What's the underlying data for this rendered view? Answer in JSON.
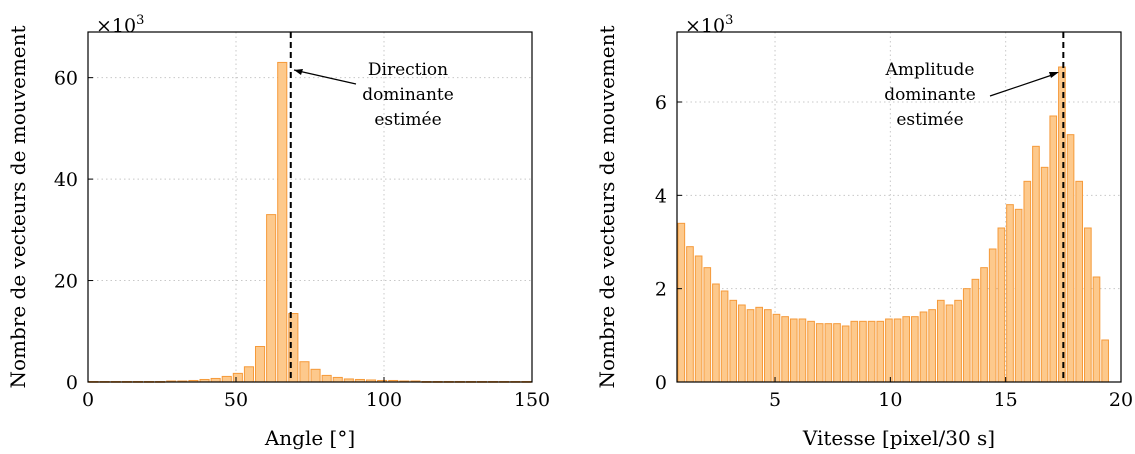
{
  "chart_data": [
    {
      "type": "bar",
      "xlabel": "Angle [°]",
      "ylabel": "Nombre de vecteurs de mouvement",
      "scale_label": "×10",
      "scale_exp": "3",
      "xlim": [
        0,
        150
      ],
      "ylim": [
        0,
        69
      ],
      "xticks": [
        "0",
        "50",
        "100",
        "150"
      ],
      "yticks": [
        "0",
        "20",
        "40",
        "60"
      ],
      "bin_width": 3.75,
      "bin_centers": [
        1.875,
        5.625,
        9.375,
        13.125,
        16.875,
        20.625,
        24.375,
        28.125,
        31.875,
        35.625,
        39.375,
        43.125,
        46.875,
        50.625,
        54.375,
        58.125,
        61.875,
        65.625,
        69.375,
        73.125,
        76.875,
        80.625,
        84.375,
        88.125,
        91.875,
        95.625,
        99.375,
        103.125,
        106.875,
        110.625,
        114.375,
        118.125,
        121.875,
        125.625,
        129.375,
        133.125,
        136.875,
        140.625,
        144.375,
        148.125
      ],
      "values": [
        0.1,
        0.1,
        0.1,
        0.1,
        0.1,
        0.1,
        0.1,
        0.2,
        0.2,
        0.3,
        0.5,
        0.7,
        1.1,
        1.7,
        3.0,
        7.0,
        33.0,
        63.0,
        13.5,
        4.0,
        2.5,
        1.3,
        0.9,
        0.6,
        0.5,
        0.4,
        0.3,
        0.3,
        0.2,
        0.2,
        0.1,
        0.1,
        0.1,
        0.1,
        0.1,
        0.1,
        0.1,
        0.1,
        0.1,
        0.1
      ],
      "marker_x": 68.5,
      "annotation_lines": [
        "Direction",
        "dominante",
        "estimée"
      ],
      "grid": true
    },
    {
      "type": "bar",
      "xlabel": "Vitesse [pixel/30 s]",
      "ylabel": "Nombre de vecteurs de mouvement",
      "scale_label": "×10",
      "scale_exp": "3",
      "xlim": [
        0.75,
        20
      ],
      "ylim": [
        0,
        7.5
      ],
      "xticks": [
        "5",
        "10",
        "15",
        "20"
      ],
      "yticks": [
        "0",
        "2",
        "4",
        "6"
      ],
      "bin_width": 0.375,
      "bin_start": 0.75,
      "values": [
        3.4,
        2.9,
        2.7,
        2.45,
        2.1,
        1.95,
        1.75,
        1.65,
        1.55,
        1.6,
        1.55,
        1.45,
        1.4,
        1.35,
        1.35,
        1.3,
        1.25,
        1.25,
        1.25,
        1.2,
        1.3,
        1.3,
        1.3,
        1.3,
        1.35,
        1.35,
        1.4,
        1.4,
        1.5,
        1.55,
        1.75,
        1.65,
        1.75,
        2.0,
        2.2,
        2.45,
        2.85,
        3.3,
        3.8,
        3.7,
        4.3,
        5.05,
        4.6,
        5.7,
        6.75,
        5.3,
        4.3,
        3.3,
        2.25,
        0.9
      ],
      "marker_x": 17.5,
      "annotation_lines": [
        "Amplitude",
        "dominante",
        "estimée"
      ],
      "grid": true
    }
  ]
}
